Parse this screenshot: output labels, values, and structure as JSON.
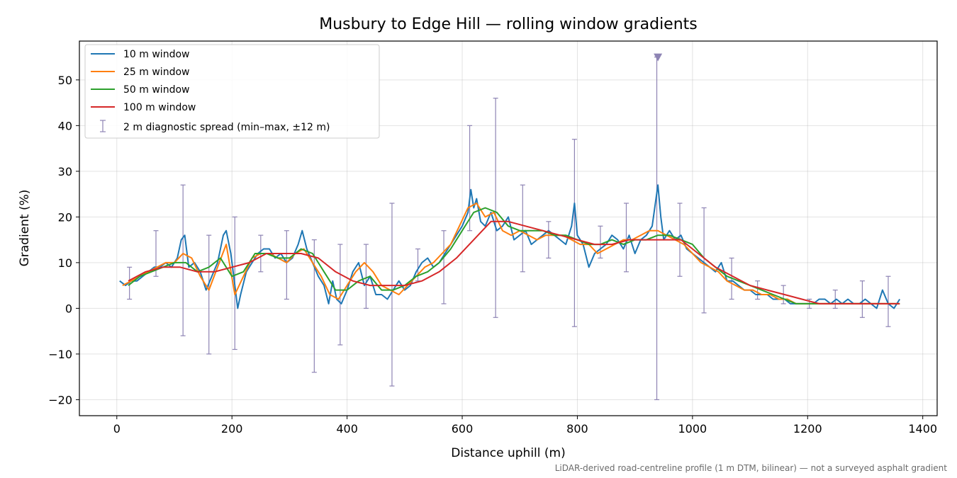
{
  "chart_data": {
    "type": "line",
    "title": "Musbury to Edge Hill — rolling window gradients",
    "xlabel": "Distance uphill (m)",
    "ylabel": "Gradient (%)",
    "caption": "LiDAR-derived road-centreline profile (1 m DTM, bilinear) — not a surveyed asphalt gradient",
    "xlim": [
      -65,
      1425
    ],
    "ylim": [
      -23.5,
      58.5
    ],
    "xticks": [
      0,
      200,
      400,
      600,
      800,
      1000,
      1200,
      1400
    ],
    "yticks": [
      -20,
      -10,
      0,
      10,
      20,
      30,
      40,
      50
    ],
    "xtick_labels": [
      "0",
      "200",
      "400",
      "600",
      "800",
      "1000",
      "1200",
      "1400"
    ],
    "ytick_labels": [
      "−20",
      "−10",
      "0",
      "10",
      "20",
      "30",
      "40",
      "50"
    ],
    "grid": true,
    "legend_position": "top-left",
    "series": [
      {
        "name": "10 m window",
        "color": "#1f77b4",
        "x": [
          5,
          15,
          25,
          35,
          45,
          55,
          65,
          75,
          85,
          95,
          105,
          112,
          118,
          125,
          135,
          145,
          155,
          165,
          175,
          185,
          190,
          198,
          205,
          210,
          215,
          225,
          235,
          245,
          255,
          265,
          275,
          285,
          295,
          305,
          315,
          322,
          330,
          340,
          350,
          360,
          368,
          375,
          382,
          390,
          400,
          410,
          420,
          430,
          440,
          450,
          460,
          470,
          480,
          490,
          500,
          510,
          520,
          530,
          540,
          550,
          560,
          570,
          580,
          590,
          600,
          610,
          615,
          620,
          625,
          632,
          640,
          650,
          660,
          670,
          680,
          690,
          700,
          710,
          720,
          730,
          740,
          750,
          760,
          770,
          780,
          790,
          795,
          800,
          810,
          820,
          830,
          840,
          850,
          860,
          870,
          880,
          890,
          900,
          910,
          920,
          930,
          940,
          945,
          950,
          960,
          970,
          980,
          990,
          1000,
          1010,
          1020,
          1030,
          1040,
          1050,
          1060,
          1070,
          1080,
          1090,
          1100,
          1110,
          1120,
          1130,
          1140,
          1150,
          1160,
          1170,
          1180,
          1190,
          1200,
          1210,
          1220,
          1230,
          1240,
          1250,
          1260,
          1270,
          1280,
          1290,
          1300,
          1310,
          1320,
          1330,
          1340,
          1350,
          1360
        ],
        "values": [
          6,
          5,
          6,
          6,
          7,
          8,
          9,
          9,
          10,
          9,
          11,
          15,
          16,
          9,
          10,
          8,
          4,
          7,
          10,
          16,
          17,
          12,
          5,
          0,
          3,
          8,
          10,
          12,
          13,
          13,
          11,
          12,
          10,
          11,
          14,
          17,
          13,
          10,
          7,
          5,
          1,
          6,
          2,
          1,
          4,
          8,
          10,
          5,
          7,
          3,
          3,
          2,
          4,
          6,
          4,
          5,
          8,
          10,
          11,
          9,
          10,
          12,
          14,
          16,
          18,
          21,
          26,
          22,
          24,
          19,
          18,
          21,
          17,
          18,
          20,
          15,
          16,
          17,
          14,
          15,
          16,
          17,
          16,
          15,
          14,
          18,
          23,
          16,
          14,
          9,
          12,
          13,
          14,
          16,
          15,
          13,
          16,
          12,
          15,
          16,
          18,
          27,
          20,
          15,
          17,
          15,
          16,
          13,
          12,
          11,
          10,
          9,
          8,
          10,
          6,
          6,
          5,
          4,
          4,
          3,
          3,
          3,
          2,
          2,
          2,
          1,
          1,
          1,
          1,
          1,
          2,
          2,
          1,
          2,
          1,
          2,
          1,
          1,
          2,
          1,
          0,
          4,
          1,
          0,
          2
        ]
      },
      {
        "name": "25 m window",
        "color": "#ff7f0e",
        "x": [
          10,
          25,
          40,
          55,
          70,
          85,
          100,
          115,
          130,
          145,
          160,
          175,
          190,
          205,
          220,
          235,
          250,
          265,
          280,
          295,
          310,
          325,
          340,
          355,
          370,
          385,
          400,
          415,
          430,
          445,
          460,
          475,
          490,
          505,
          520,
          535,
          550,
          565,
          580,
          595,
          610,
          625,
          640,
          655,
          670,
          685,
          700,
          715,
          730,
          745,
          760,
          775,
          790,
          805,
          820,
          835,
          850,
          865,
          880,
          895,
          910,
          925,
          940,
          955,
          970,
          985,
          1000,
          1015,
          1030,
          1045,
          1060,
          1075,
          1090,
          1105,
          1120,
          1135,
          1150,
          1165,
          1180,
          1195,
          1210,
          1225,
          1240,
          1255,
          1270,
          1285,
          1300,
          1315,
          1330,
          1345,
          1360
        ],
        "values": [
          5,
          6,
          7,
          8,
          9,
          10,
          10,
          12,
          11,
          7,
          4,
          9,
          14,
          3,
          7,
          11,
          12,
          12,
          11,
          10,
          12,
          13,
          10,
          7,
          3,
          2,
          5,
          8,
          10,
          8,
          5,
          4,
          3,
          5,
          7,
          9,
          10,
          12,
          14,
          18,
          22,
          23,
          20,
          21,
          17,
          16,
          17,
          16,
          15,
          16,
          16,
          16,
          15,
          14,
          14,
          12,
          13,
          14,
          15,
          15,
          16,
          17,
          17,
          16,
          15,
          14,
          12,
          10,
          9,
          8,
          6,
          5,
          4,
          4,
          3,
          3,
          2,
          2,
          1,
          1,
          1,
          1,
          1,
          1,
          1,
          1,
          1,
          1,
          1,
          1,
          1
        ]
      },
      {
        "name": "50 m window",
        "color": "#2ca02c",
        "x": [
          20,
          40,
          60,
          80,
          100,
          120,
          140,
          160,
          180,
          200,
          220,
          240,
          260,
          280,
          300,
          320,
          340,
          360,
          380,
          400,
          420,
          440,
          460,
          480,
          500,
          520,
          540,
          560,
          580,
          600,
          620,
          640,
          660,
          680,
          700,
          720,
          740,
          760,
          780,
          800,
          820,
          840,
          860,
          880,
          900,
          920,
          940,
          960,
          980,
          1000,
          1020,
          1040,
          1060,
          1080,
          1100,
          1120,
          1140,
          1160,
          1180,
          1200,
          1220,
          1240,
          1260,
          1280,
          1300,
          1320,
          1340,
          1360
        ],
        "values": [
          5,
          7,
          8,
          9,
          10,
          10,
          8,
          9,
          11,
          7,
          8,
          12,
          12,
          11,
          11,
          13,
          12,
          8,
          4,
          4,
          6,
          7,
          4,
          4,
          5,
          7,
          8,
          10,
          13,
          17,
          21,
          22,
          21,
          18,
          17,
          17,
          17,
          16,
          16,
          15,
          14,
          14,
          15,
          14,
          15,
          15,
          16,
          16,
          15,
          14,
          11,
          9,
          7,
          6,
          5,
          4,
          3,
          2,
          1,
          1,
          1,
          1,
          1,
          1,
          1,
          1,
          1,
          1
        ]
      },
      {
        "name": "100 m window",
        "color": "#d62728",
        "x": [
          20,
          50,
          80,
          110,
          140,
          170,
          200,
          230,
          260,
          290,
          320,
          350,
          380,
          410,
          440,
          470,
          500,
          530,
          560,
          590,
          620,
          650,
          680,
          710,
          740,
          770,
          800,
          830,
          860,
          890,
          920,
          950,
          980,
          1010,
          1040,
          1070,
          1100,
          1130,
          1160,
          1190,
          1220,
          1250,
          1280,
          1310,
          1340,
          1360
        ],
        "values": [
          6,
          8,
          9,
          9,
          8,
          8,
          9,
          10,
          12,
          12,
          12,
          11,
          8,
          6,
          5,
          5,
          5,
          6,
          8,
          11,
          15,
          19,
          19,
          18,
          17,
          16,
          15,
          14,
          14,
          15,
          15,
          15,
          15,
          12,
          9,
          7,
          5,
          4,
          3,
          2,
          1,
          1,
          1,
          1,
          1,
          1
        ]
      }
    ],
    "error_bars": {
      "name": "2 m diagnostic spread (min–max, ±12 m)",
      "color": "#8e84b4",
      "points": [
        {
          "x": 22,
          "min": 2,
          "max": 9
        },
        {
          "x": 68,
          "min": 7,
          "max": 17
        },
        {
          "x": 115,
          "min": -6,
          "max": 27
        },
        {
          "x": 160,
          "min": -10,
          "max": 16
        },
        {
          "x": 205,
          "min": -9,
          "max": 20
        },
        {
          "x": 250,
          "min": 8,
          "max": 16
        },
        {
          "x": 295,
          "min": 2,
          "max": 17
        },
        {
          "x": 343,
          "min": -14,
          "max": 15
        },
        {
          "x": 388,
          "min": -8,
          "max": 14
        },
        {
          "x": 433,
          "min": 0,
          "max": 14
        },
        {
          "x": 478,
          "min": -17,
          "max": 23
        },
        {
          "x": 523,
          "min": 6,
          "max": 13
        },
        {
          "x": 568,
          "min": 1,
          "max": 17
        },
        {
          "x": 613,
          "min": 17,
          "max": 40
        },
        {
          "x": 658,
          "min": -2,
          "max": 46
        },
        {
          "x": 705,
          "min": 8,
          "max": 27
        },
        {
          "x": 750,
          "min": 11,
          "max": 19
        },
        {
          "x": 795,
          "min": -4,
          "max": 37
        },
        {
          "x": 840,
          "min": 11,
          "max": 18
        },
        {
          "x": 885,
          "min": 8,
          "max": 23
        },
        {
          "x": 938,
          "min": -20,
          "max": 55
        },
        {
          "x": 978,
          "min": 7,
          "max": 23
        },
        {
          "x": 1020,
          "min": -1,
          "max": 22
        },
        {
          "x": 1068,
          "min": 2,
          "max": 11
        },
        {
          "x": 1113,
          "min": 2,
          "max": 6
        },
        {
          "x": 1158,
          "min": 1,
          "max": 5
        },
        {
          "x": 1203,
          "min": 0,
          "max": 2
        },
        {
          "x": 1248,
          "min": 0,
          "max": 4
        },
        {
          "x": 1295,
          "min": -2,
          "max": 6
        },
        {
          "x": 1340,
          "min": -4,
          "max": 7
        }
      ],
      "clipped_marker": {
        "x": 940,
        "y": 55
      }
    }
  }
}
